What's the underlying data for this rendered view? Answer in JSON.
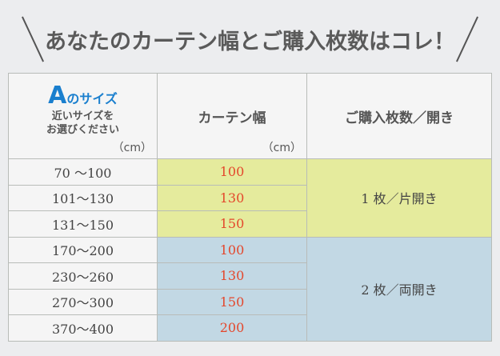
{
  "title": "あなたのカーテン幅とご購入枚数はコレ！",
  "header": {
    "col1_letter": "A",
    "col1_title": "のサイズ",
    "col1_sub1": "近いサイズを",
    "col1_sub2": "お選びください",
    "col1_unit": "（cm）",
    "col2": "カーテン幅",
    "col2_unit": "（cm）",
    "col3": "ご購入枚数／開き"
  },
  "colors": {
    "accent": "#1a7fce",
    "width_text": "#e4472c",
    "group1": "#e5eb9d",
    "group2": "#c2d8e4"
  },
  "rows": [
    {
      "range": "70 〜100",
      "width": "100"
    },
    {
      "range": "101〜130",
      "width": "130"
    },
    {
      "range": "131〜150",
      "width": "150"
    },
    {
      "range": "170〜200",
      "width": "100"
    },
    {
      "range": "230〜260",
      "width": "130"
    },
    {
      "range": "270〜300",
      "width": "150"
    },
    {
      "range": "370〜400",
      "width": "200"
    }
  ],
  "groups": [
    "1 枚／片開き",
    "2 枚／両開き"
  ]
}
